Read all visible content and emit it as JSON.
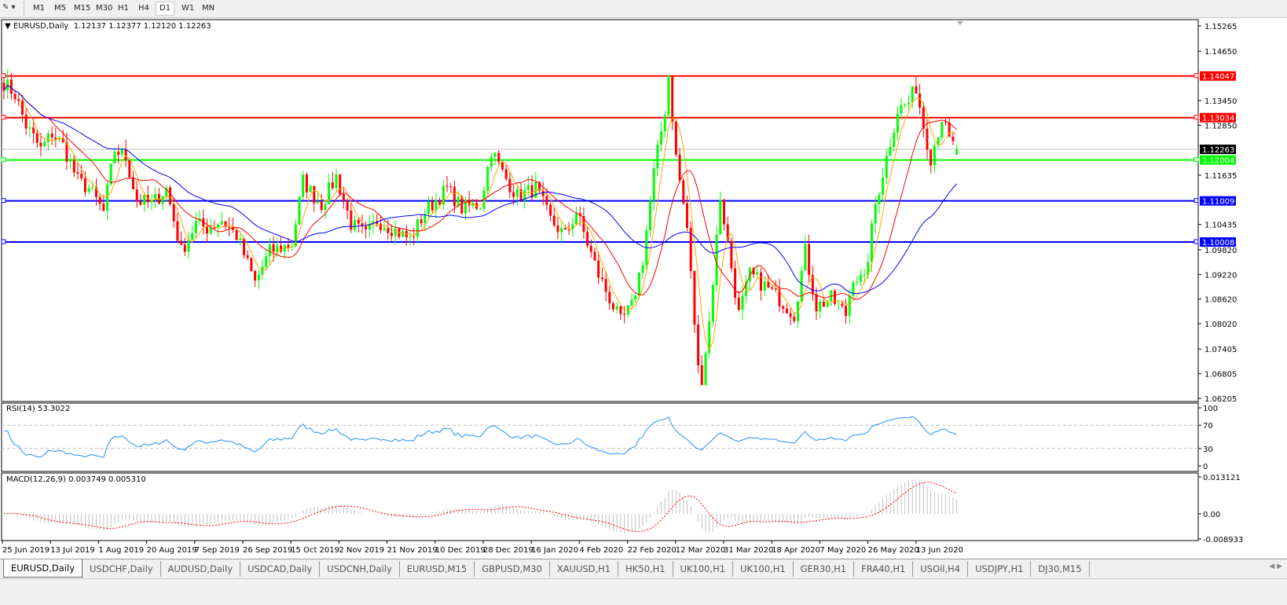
{
  "toolbar": {
    "timeframes": [
      "M1",
      "M5",
      "M15",
      "M30",
      "H1",
      "H4",
      "D1",
      "W1",
      "MN"
    ],
    "active_timeframe": "D1"
  },
  "chart": {
    "symbol_label": "EURUSD,Daily",
    "ohlc_text": "1.12137 1.12377 1.12120 1.12263",
    "last_candle": {
      "open": 1.12137,
      "high": 1.12377,
      "low": 1.1212,
      "close": 1.12263
    },
    "price_ticks": [
      "1.15265",
      "1.14650",
      "1.13450",
      "1.12850",
      "1.11635",
      "1.10435",
      "1.09820",
      "1.09220",
      "1.08620",
      "1.08020",
      "1.07405",
      "1.06805",
      "1.06205"
    ],
    "price_range": [
      1.06205,
      1.15265
    ],
    "current_price": {
      "label": "1.12263",
      "color": "#000000"
    },
    "horizontal_lines": [
      {
        "label": "1.14047",
        "color": "#ff0000"
      },
      {
        "label": "1.13034",
        "color": "#ff0000"
      },
      {
        "label": "1.12004",
        "color": "#00ff00"
      },
      {
        "label": "1.11009",
        "color": "#0000ff"
      },
      {
        "label": "1.10008",
        "color": "#0000ff"
      }
    ],
    "bull_color": "#00ff00",
    "bear_color": "#ff0000",
    "ma_colors": {
      "fast": "#ffa500",
      "mid": "#ff0000",
      "slow": "#0000ff"
    },
    "date_labels": [
      "25 Jun 2019",
      "13 Jul 2019",
      "1 Aug 2019",
      "20 Aug 2019",
      "7 Sep 2019",
      "26 Sep 2019",
      "15 Oct 2019",
      "2 Nov 2019",
      "21 Nov 2019",
      "10 Dec 2019",
      "28 Dec 2019",
      "16 Jan 2020",
      "4 Feb 2020",
      "22 Feb 2020",
      "12 Mar 2020",
      "31 Mar 2020",
      "18 Apr 2020",
      "7 May 2020",
      "26 May 2020",
      "13 Jun 2020"
    ],
    "close_path": [
      [
        0,
        1.1389
      ],
      [
        3,
        1.136
      ],
      [
        6,
        1.1284
      ],
      [
        10,
        1.1226
      ],
      [
        13,
        1.1265
      ],
      [
        16,
        1.1236
      ],
      [
        20,
        1.115
      ],
      [
        23,
        1.1131
      ],
      [
        27,
        1.1074
      ],
      [
        30,
        1.1226
      ],
      [
        33,
        1.1207
      ],
      [
        36,
        1.1102
      ],
      [
        40,
        1.1093
      ],
      [
        44,
        1.1131
      ],
      [
        48,
        1.0978
      ],
      [
        52,
        1.1045
      ],
      [
        55,
        1.1035
      ],
      [
        59,
        1.1054
      ],
      [
        63,
        1.1016
      ],
      [
        68,
        1.0902
      ],
      [
        72,
        1.0978
      ],
      [
        78,
        1.0997
      ],
      [
        81,
        1.115
      ],
      [
        84,
        1.1112
      ],
      [
        86,
        1.1093
      ],
      [
        90,
        1.116
      ],
      [
        94,
        1.1045
      ],
      [
        98,
        1.1016
      ],
      [
        101,
        1.1054
      ],
      [
        105,
        1.1035
      ],
      [
        110,
        1.1007
      ],
      [
        114,
        1.1074
      ],
      [
        120,
        1.1131
      ],
      [
        124,
        1.1083
      ],
      [
        129,
        1.1093
      ],
      [
        132,
        1.1226
      ],
      [
        135,
        1.1169
      ],
      [
        139,
        1.1112
      ],
      [
        144,
        1.1131
      ],
      [
        148,
        1.1054
      ],
      [
        152,
        1.1016
      ],
      [
        155,
        1.1074
      ],
      [
        161,
        1.0921
      ],
      [
        167,
        1.0806
      ],
      [
        170,
        1.0844
      ],
      [
        173,
        1.0959
      ],
      [
        176,
        1.1169
      ],
      [
        179,
        1.1322
      ],
      [
        180,
        1.1408
      ],
      [
        182,
        1.1207
      ],
      [
        185,
        1.1035
      ],
      [
        188,
        1.0691
      ],
      [
        189,
        1.0672
      ],
      [
        191,
        1.0806
      ],
      [
        194,
        1.1112
      ],
      [
        196,
        1.0997
      ],
      [
        199,
        1.0825
      ],
      [
        202,
        1.0921
      ],
      [
        205,
        1.0902
      ],
      [
        210,
        1.0863
      ],
      [
        214,
        1.0825
      ],
      [
        217,
        1.0978
      ],
      [
        220,
        1.0844
      ],
      [
        224,
        1.0863
      ],
      [
        228,
        1.0825
      ],
      [
        230,
        1.0921
      ],
      [
        233,
        1.0902
      ],
      [
        236,
        1.1093
      ],
      [
        239,
        1.1207
      ],
      [
        242,
        1.1322
      ],
      [
        245,
        1.1341
      ],
      [
        247,
        1.1379
      ],
      [
        249,
        1.1284
      ],
      [
        251,
        1.1207
      ],
      [
        254,
        1.1303
      ],
      [
        256,
        1.1246
      ],
      [
        258,
        1.12263
      ]
    ]
  },
  "rsi": {
    "label": "RSI(14) 53.3022",
    "levels": [
      "100",
      "70",
      "30",
      "0"
    ],
    "color": "#1e90ff"
  },
  "macd": {
    "label": "MACD(12,26,9) 0.003749 0.005310",
    "ticks": [
      "0.013121",
      "0.00",
      "-0.008933"
    ],
    "histogram_color": "#c0c0c0",
    "signal_color": "#ff0000"
  },
  "tabs": [
    "EURUSD,Daily",
    "USDCHF,Daily",
    "AUDUSD,Daily",
    "USDCAD,Daily",
    "USDCNH,Daily",
    "EURUSD,M15",
    "GBPUSD,M30",
    "XAUUSD,H1",
    "HK50,H1",
    "UK100,H1",
    "UK100,H1",
    "GER30,H1",
    "FRA40,H1",
    "USOil,H4",
    "USDJPY,H1",
    "DJ30,M15"
  ],
  "active_tab": "EURUSD,Daily"
}
